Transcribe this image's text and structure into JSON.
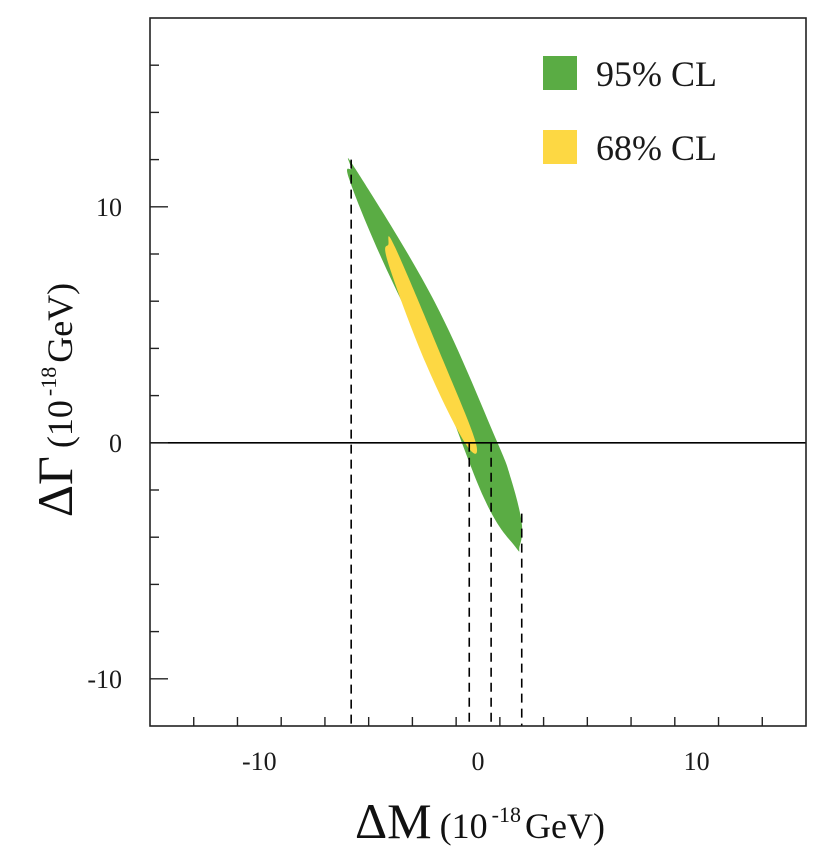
{
  "chart_data": {
    "type": "contour",
    "x_label": {
      "symbol": "ΔM",
      "unit_prefix": "(10",
      "unit_exp": "-18",
      "unit_suffix": " GeV)"
    },
    "y_label": {
      "symbol": "ΔΓ",
      "unit_prefix": "(10",
      "unit_exp": "-18",
      "unit_suffix": " GeV)"
    },
    "xlim": [
      -15,
      15
    ],
    "ylim": [
      -12,
      18
    ],
    "x_major_ticks": [
      -10,
      0,
      10
    ],
    "x_major_tick_labels": [
      "-10",
      "0",
      "10"
    ],
    "x_minor_step": 2,
    "y_major_ticks": [
      -10,
      0,
      10
    ],
    "y_major_tick_labels": [
      "-10",
      "0",
      "10"
    ],
    "y_minor_step": 2,
    "horizontal_reference_line": 0,
    "series": [
      {
        "name": "95% CL",
        "color": "#5aac44",
        "polygon": [
          [
            -5.8,
            11.6
          ],
          [
            -5.6,
            11.6
          ],
          [
            -2.0,
            6.0
          ],
          [
            0.8,
            0.2
          ],
          [
            1.5,
            -1.5
          ],
          [
            2.0,
            -3.4
          ],
          [
            1.9,
            -4.4
          ],
          [
            1.7,
            -4.4
          ],
          [
            0.3,
            -2.4
          ],
          [
            -2.0,
            3.0
          ],
          [
            -4.5,
            8.0
          ],
          [
            -5.9,
            11.2
          ]
        ]
      },
      {
        "name": "68% CL",
        "color": "#fdd843",
        "polygon": [
          [
            -4.1,
            8.4
          ],
          [
            -3.8,
            8.3
          ],
          [
            -1.6,
            3.5
          ],
          [
            -0.1,
            0.0
          ],
          [
            -0.6,
            0.0
          ],
          [
            -2.4,
            3.4
          ],
          [
            -4.1,
            7.6
          ]
        ]
      }
    ],
    "dashed_vertical_lines": [
      {
        "x": -5.8,
        "y_top": 12.0
      },
      {
        "x": -0.4,
        "y_top": 0.0
      },
      {
        "x": 0.6,
        "y_top": 0.0
      },
      {
        "x": 2.0,
        "y_top": -3.0
      }
    ],
    "legend": {
      "position": "top-right",
      "entries": [
        {
          "label": "95% CL",
          "color": "#5aac44"
        },
        {
          "label": "68% CL",
          "color": "#fdd843"
        }
      ]
    }
  }
}
